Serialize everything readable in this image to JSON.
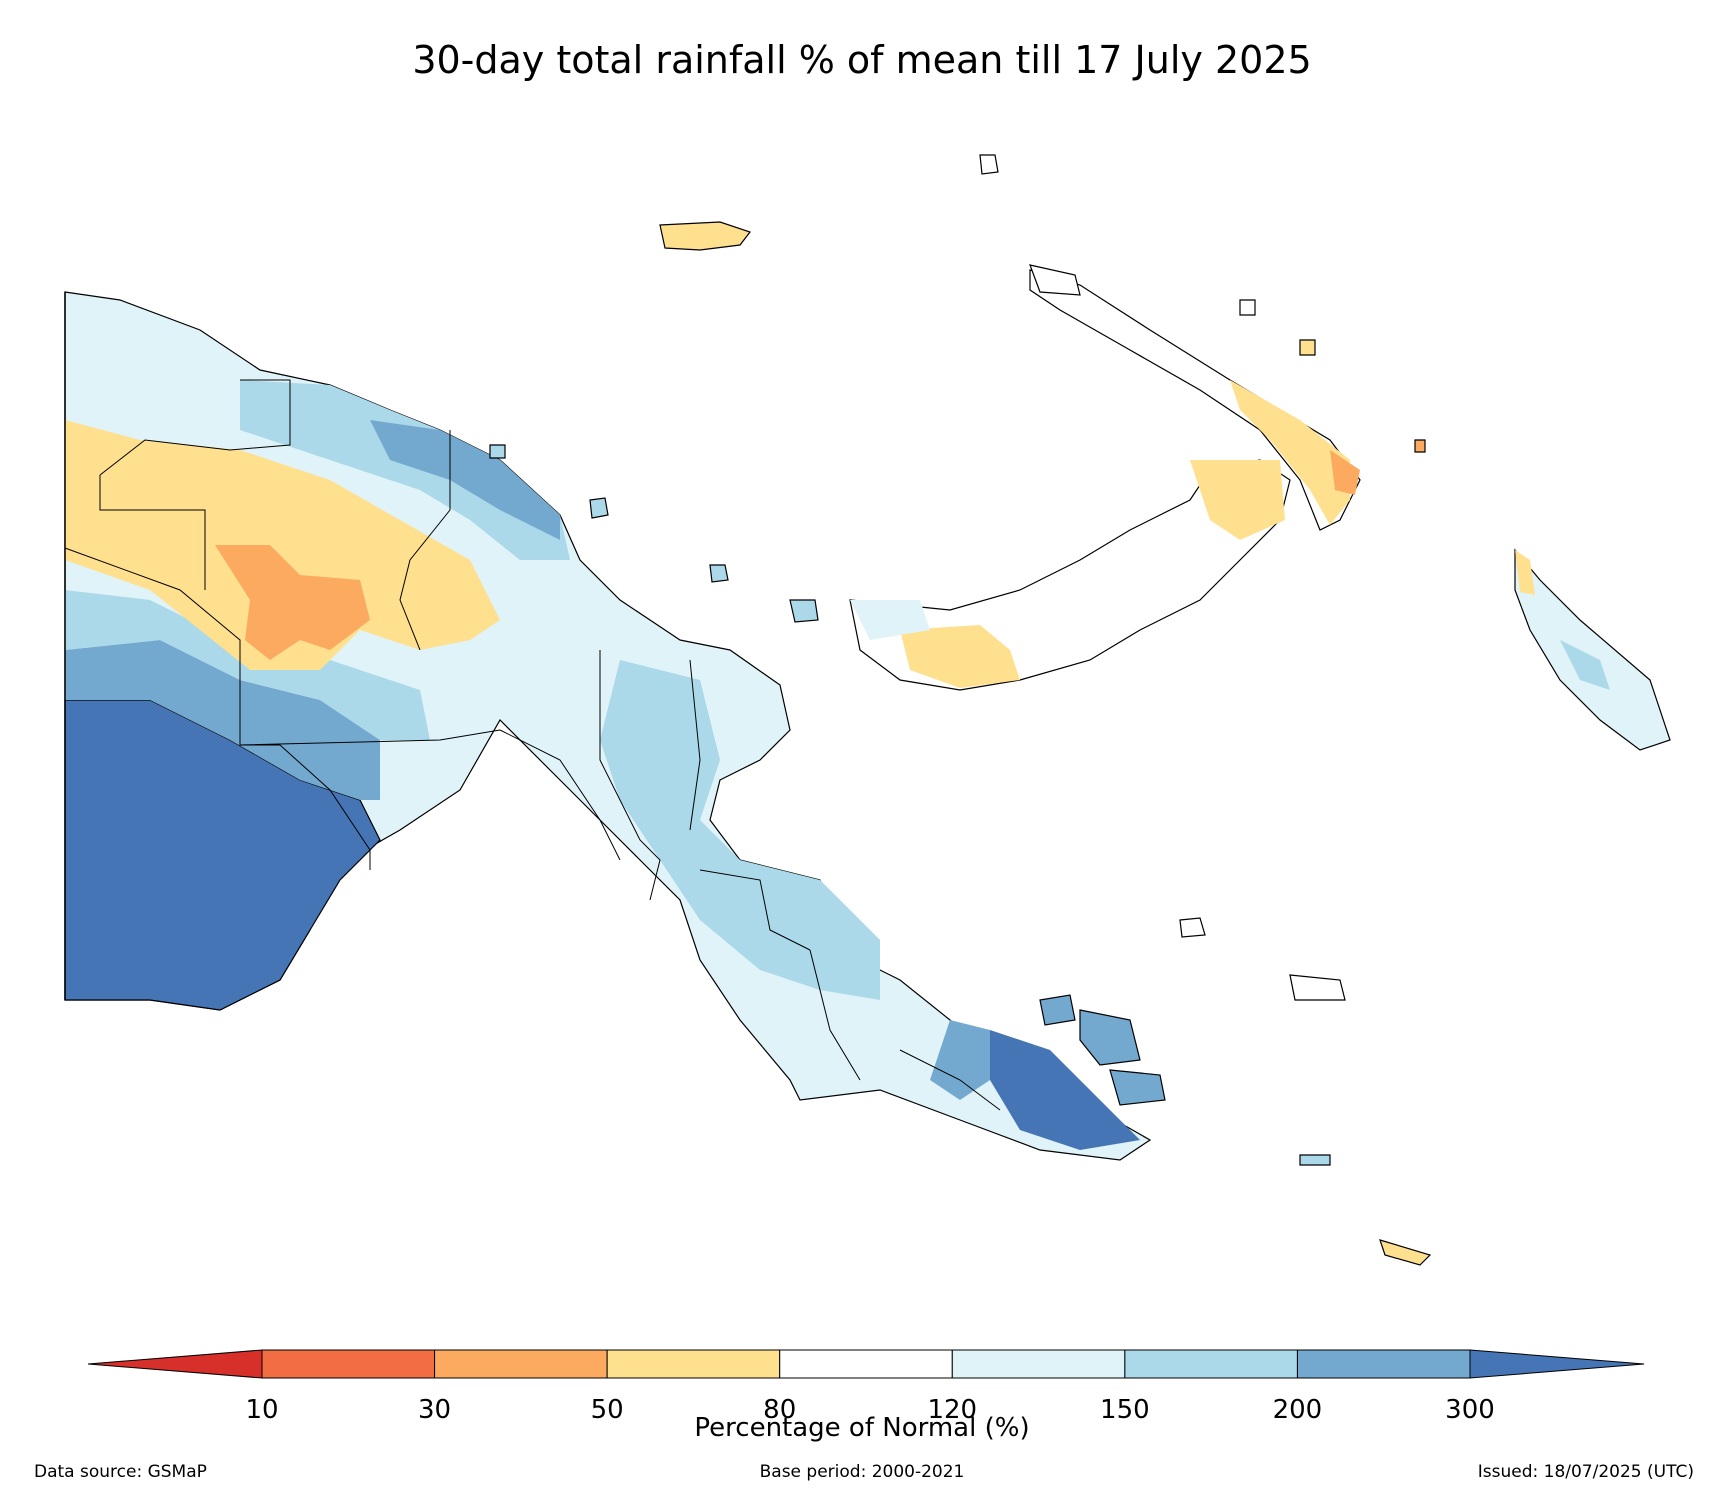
{
  "title": "30-day total rainfall % of mean till 17 July 2025",
  "legend": {
    "title": "Percentage of Normal (%)",
    "ticks": [
      "10",
      "30",
      "50",
      "80",
      "120",
      "150",
      "200",
      "300"
    ],
    "bins": [
      {
        "range": "<10",
        "color": "#d7302b"
      },
      {
        "range": "10-30",
        "color": "#f26d44"
      },
      {
        "range": "30-50",
        "color": "#fbaa5f"
      },
      {
        "range": "50-80",
        "color": "#fee08f"
      },
      {
        "range": "80-120",
        "color": "#ffffff"
      },
      {
        "range": "120-150",
        "color": "#e0f3f8"
      },
      {
        "range": "150-200",
        "color": "#abd9e9"
      },
      {
        "range": "200-300",
        "color": "#74a9cf"
      },
      {
        "range": ">300",
        "color": "#4575b4"
      }
    ]
  },
  "footer": {
    "source": "Data source: GSMaP",
    "base_period": "Base period: 2000-2021",
    "issued": "Issued: 18/07/2025 (UTC)"
  }
}
